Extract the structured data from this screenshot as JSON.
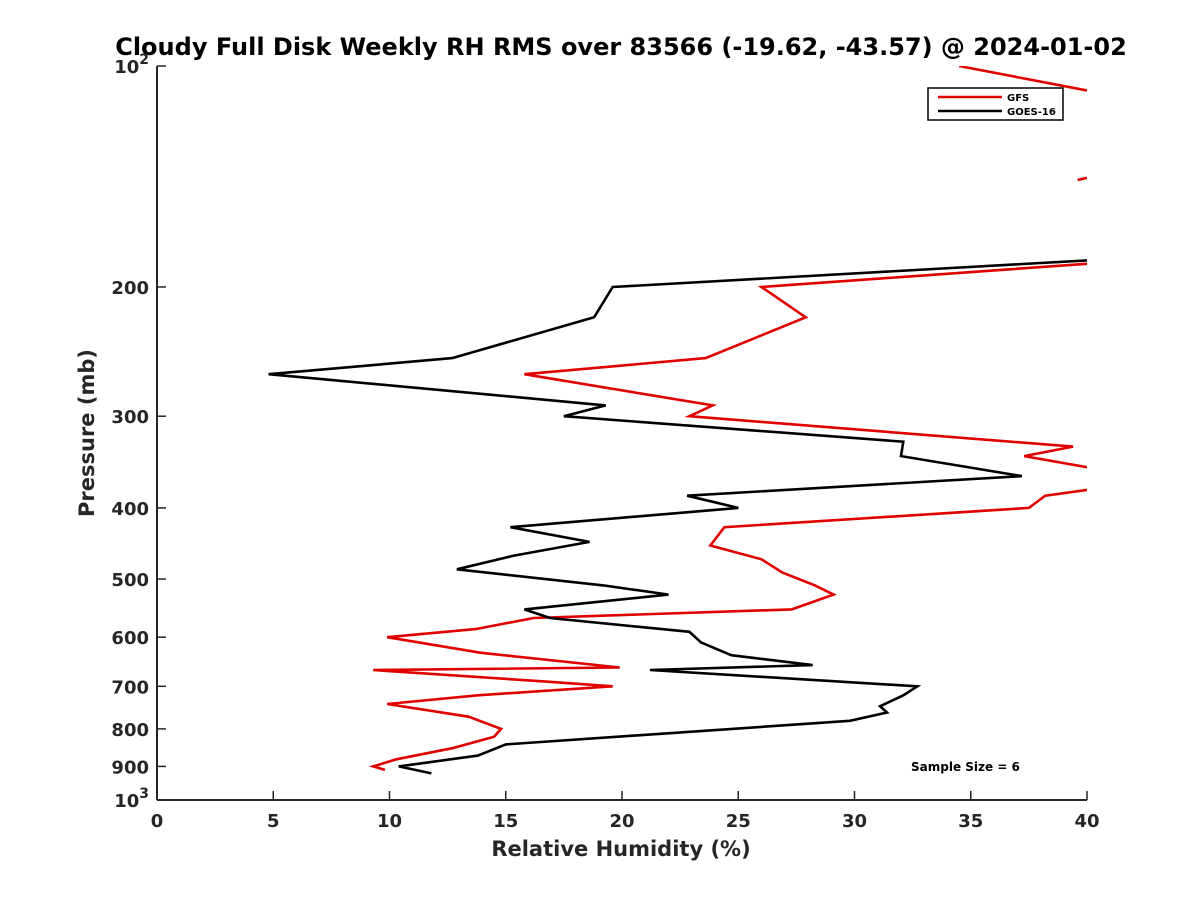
{
  "chart_data": {
    "type": "line",
    "title": "Cloudy Full Disk Weekly RH RMS over 83566 (-19.62, -43.57) @ 2024-01-02",
    "xlabel": "Relative Humidity (%)",
    "ylabel": "Pressure (mb)",
    "xlim": [
      0,
      40
    ],
    "ylim": [
      100,
      1000
    ],
    "y_scale": "log",
    "y_reversed": true,
    "grid": false,
    "legend_position": "top-right",
    "x_ticks": [
      "0",
      "5",
      "10",
      "15",
      "20",
      "25",
      "30",
      "35",
      "40"
    ],
    "y_ticks": [
      {
        "value": 100,
        "base": "10",
        "exp": "2"
      },
      {
        "value": 200,
        "label": "200"
      },
      {
        "value": 300,
        "label": "300"
      },
      {
        "value": 400,
        "label": "400"
      },
      {
        "value": 500,
        "label": "500"
      },
      {
        "value": 600,
        "label": "600"
      },
      {
        "value": 700,
        "label": "700"
      },
      {
        "value": 800,
        "label": "800"
      },
      {
        "value": 900,
        "label": "900"
      },
      {
        "value": 1000,
        "base": "10",
        "exp": "3"
      }
    ],
    "annotation": "Sample Size = 6",
    "series": [
      {
        "name": "GFS",
        "color": "#e00000",
        "segments": [
          [
            [
              34.5,
              100
            ],
            [
              40,
              108
            ]
          ],
          [
            [
              40,
              142
            ],
            [
              39.6,
              143
            ]
          ],
          [
            [
              40,
              186
            ],
            [
              26,
              200
            ],
            [
              27.9,
              220
            ],
            [
              23.6,
              250
            ],
            [
              15.8,
              263
            ],
            [
              23.9,
              290
            ],
            [
              22.9,
              300
            ],
            [
              39.4,
              330
            ],
            [
              37.3,
              340
            ],
            [
              40,
              352
            ]
          ],
          [
            [
              40,
              378
            ],
            [
              38.2,
              385
            ],
            [
              37.5,
              400
            ],
            [
              24.4,
              425
            ],
            [
              23.8,
              450
            ],
            [
              26,
              470
            ],
            [
              26.9,
              490
            ],
            [
              28.3,
              510
            ],
            [
              29.1,
              525
            ],
            [
              27.3,
              550
            ],
            [
              16.2,
              565
            ],
            [
              13.7,
              585
            ],
            [
              9.9,
              600
            ],
            [
              13.9,
              630
            ],
            [
              19.9,
              660
            ],
            [
              9.3,
              665
            ],
            [
              16.8,
              690
            ],
            [
              19.6,
              700
            ],
            [
              13.8,
              720
            ],
            [
              9.9,
              740
            ],
            [
              13.4,
              770
            ],
            [
              14.8,
              800
            ],
            [
              14.5,
              820
            ],
            [
              12.7,
              850
            ],
            [
              10.3,
              880
            ],
            [
              9.3,
              900
            ],
            [
              9.8,
              910
            ]
          ]
        ]
      },
      {
        "name": "GOES-16",
        "color": "#000000",
        "segments": [
          [
            [
              40,
              184
            ],
            [
              19.6,
              200
            ],
            [
              18.8,
              220
            ],
            [
              12.7,
              250
            ],
            [
              4.8,
              263
            ],
            [
              19.3,
              290
            ],
            [
              17.5,
              300
            ],
            [
              32.1,
              325
            ],
            [
              32,
              340
            ],
            [
              37.2,
              362
            ],
            [
              22.8,
              385
            ],
            [
              25,
              400
            ],
            [
              15.2,
              425
            ],
            [
              18.6,
              445
            ],
            [
              15.3,
              465
            ],
            [
              12.9,
              485
            ],
            [
              19.2,
              510
            ],
            [
              22,
              525
            ],
            [
              15.8,
              550
            ],
            [
              16.9,
              565
            ],
            [
              22.9,
              590
            ],
            [
              23.4,
              610
            ],
            [
              24.7,
              635
            ],
            [
              28.2,
              655
            ],
            [
              21.2,
              665
            ],
            [
              32.7,
              700
            ],
            [
              32.1,
              720
            ],
            [
              31.1,
              745
            ],
            [
              31.4,
              760
            ],
            [
              29.8,
              780
            ],
            [
              15,
              840
            ],
            [
              13.8,
              870
            ],
            [
              10.4,
              900
            ],
            [
              11.8,
              920
            ]
          ]
        ]
      }
    ]
  }
}
